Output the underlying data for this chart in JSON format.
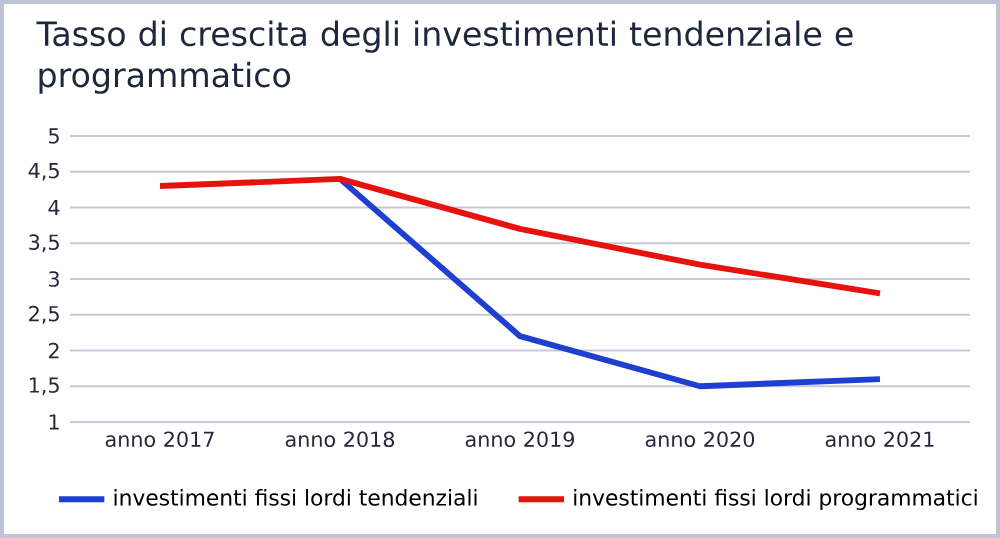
{
  "chart_data": {
    "type": "line",
    "title": "Tasso di crescita degli investimenti tendenziale e programmatico",
    "categories": [
      "anno 2017",
      "anno 2018",
      "anno 2019",
      "anno 2020",
      "anno 2021"
    ],
    "series": [
      {
        "name": "investimenti fissi lordi tendenziali",
        "color": "#1f3fd0",
        "values": [
          null,
          4.4,
          2.2,
          1.5,
          1.6
        ]
      },
      {
        "name": "investimenti fissi lordi programmatici",
        "color": "#e8120c",
        "values": [
          4.3,
          4.4,
          3.7,
          3.2,
          2.8
        ]
      }
    ],
    "ylim": [
      1,
      5
    ],
    "yticks": [
      1,
      {
        "value": 1.5,
        "label": "1,5"
      },
      2,
      {
        "value": 2.5,
        "label": "2,5"
      },
      3,
      {
        "value": 3.5,
        "label": "3,5"
      },
      4,
      {
        "value": 4.5,
        "label": "4,5"
      },
      5
    ],
    "grid": "y",
    "legend": "bottom"
  }
}
